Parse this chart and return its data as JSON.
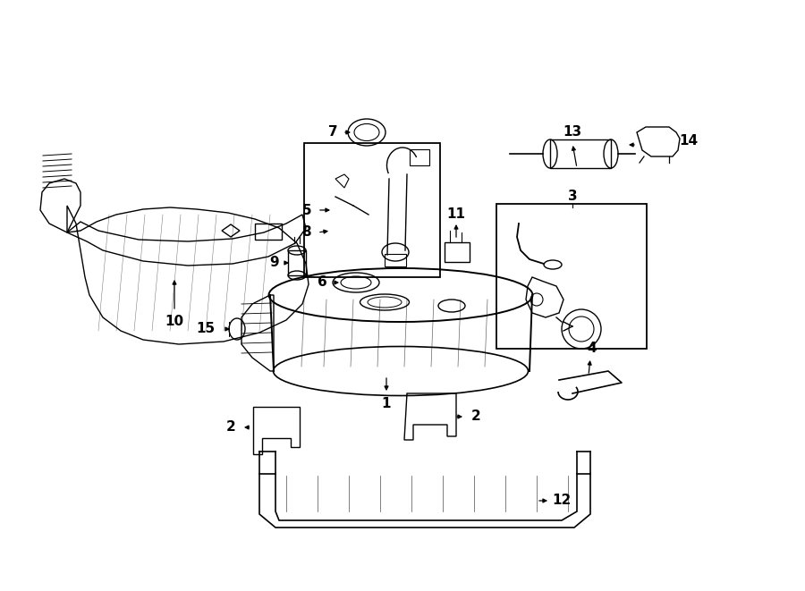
{
  "bg_color": "#ffffff",
  "line_color": "#000000",
  "figsize": [
    9.0,
    6.61
  ],
  "dpi": 100,
  "lw": 1.0
}
